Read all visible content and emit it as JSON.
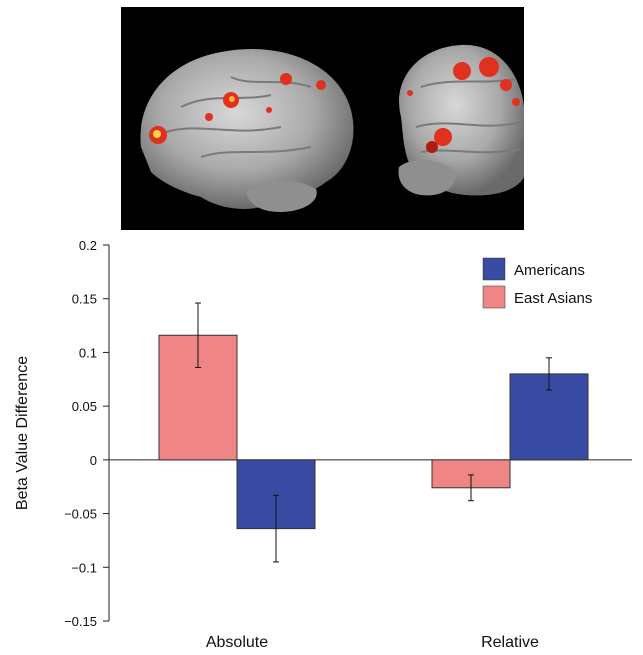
{
  "colors": {
    "americans": "#3a4ba3",
    "east_asians": "#f08585",
    "brain_background": "#000000",
    "activation": "#e0301e",
    "activation_hot": "#ffd24a"
  },
  "figure": {
    "brain_image": {
      "description_icon": "brain-activation-render-icon"
    }
  },
  "chart_data": {
    "type": "bar",
    "title": "",
    "xlabel": "",
    "ylabel": "Beta Value Difference",
    "categories": [
      "Absolute",
      "Relative"
    ],
    "ylim": [
      -0.15,
      0.2
    ],
    "yticks": [
      -0.15,
      -0.1,
      -0.05,
      0,
      0.05,
      0.1,
      0.15,
      0.2
    ],
    "ytick_labels": [
      "−0.15",
      "−0.1",
      "−0.05",
      "0",
      "0.05",
      "0.1",
      "0.15",
      "0.2"
    ],
    "series": [
      {
        "name": "East Asians",
        "values": [
          0.116,
          -0.026
        ],
        "error": [
          0.03,
          0.012
        ],
        "color": "#f08585"
      },
      {
        "name": "Americans",
        "values": [
          -0.064,
          0.08
        ],
        "error": [
          0.031,
          0.015
        ],
        "color": "#3a4ba3"
      }
    ],
    "legend": {
      "position": "top-right",
      "entries": [
        {
          "label": "Americans",
          "color": "#3a4ba3"
        },
        {
          "label": "East Asians",
          "color": "#f08585"
        }
      ]
    },
    "grid": false
  }
}
